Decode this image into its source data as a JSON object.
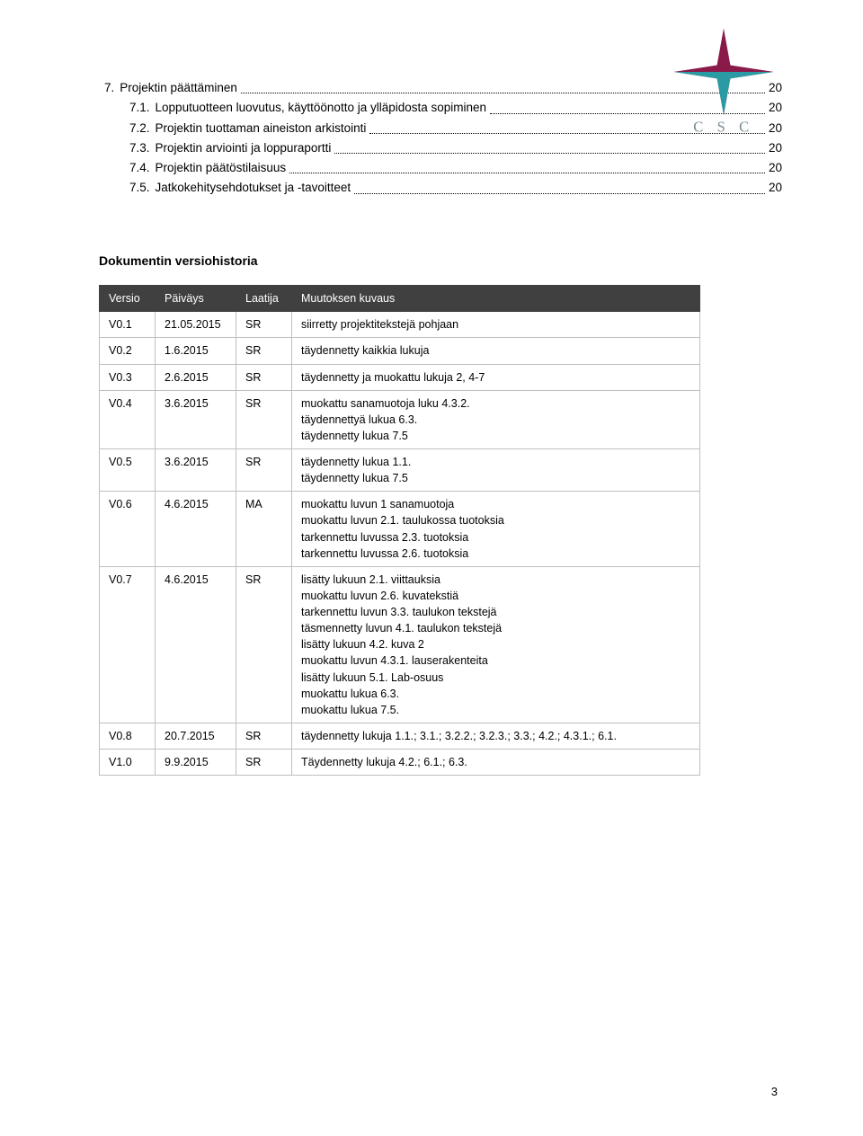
{
  "logo": {
    "text": "C S C",
    "text_color": "#7a8e95",
    "star_color_dark": "#8a1a4a",
    "star_color_teal": "#2a9ba3"
  },
  "toc": [
    {
      "level": 0,
      "num": "7.",
      "title": "Projektin päättäminen",
      "page": "20"
    },
    {
      "level": 1,
      "num": "7.1.",
      "title": "Lopputuotteen luovutus, käyttöönotto ja ylläpidosta sopiminen",
      "page": "20"
    },
    {
      "level": 1,
      "num": "7.2.",
      "title": "Projektin tuottaman aineiston arkistointi",
      "page": "20"
    },
    {
      "level": 1,
      "num": "7.3.",
      "title": "Projektin arviointi ja loppuraportti",
      "page": "20"
    },
    {
      "level": 1,
      "num": "7.4.",
      "title": "Projektin päätöstilaisuus",
      "page": "20"
    },
    {
      "level": 1,
      "num": "7.5.",
      "title": "Jatkokehitysehdotukset ja -tavoitteet",
      "page": "20"
    }
  ],
  "section_heading": "Dokumentin versiohistoria",
  "table": {
    "headers": [
      "Versio",
      "Päiväys",
      "Laatija",
      "Muutoksen kuvaus"
    ],
    "rows": [
      {
        "c": [
          "V0.1",
          "21.05.2015",
          "SR",
          "siirretty projektitekstejä pohjaan"
        ]
      },
      {
        "c": [
          "V0.2",
          "1.6.2015",
          "SR",
          "täydennetty kaikkia lukuja"
        ]
      },
      {
        "c": [
          "V0.3",
          "2.6.2015",
          "SR",
          "täydennetty ja muokattu lukuja 2, 4-7"
        ]
      },
      {
        "c": [
          "V0.4",
          "3.6.2015",
          "SR",
          "muokattu sanamuotoja luku 4.3.2.\ntäydennettyä lukua 6.3.\ntäydennetty lukua 7.5"
        ]
      },
      {
        "c": [
          "V0.5",
          "3.6.2015",
          "SR",
          "täydennetty lukua 1.1.\ntäydennetty lukua 7.5"
        ]
      },
      {
        "c": [
          "V0.6",
          "4.6.2015",
          "MA",
          "muokattu luvun 1 sanamuotoja\nmuokattu luvun 2.1. taulukossa tuotoksia\ntarkennettu luvussa 2.3. tuotoksia\ntarkennettu luvussa 2.6. tuotoksia"
        ]
      },
      {
        "c": [
          "V0.7",
          "4.6.2015",
          "SR",
          "lisätty lukuun 2.1. viittauksia\nmuokattu luvun 2.6. kuvatekstiä\ntarkennettu luvun 3.3. taulukon tekstejä\ntäsmennetty luvun 4.1. taulukon tekstejä\nlisätty lukuun 4.2. kuva 2\nmuokattu luvun 4.3.1. lauserakenteita\nlisätty lukuun 5.1. Lab-osuus\nmuokattu lukua 6.3.\nmuokattu lukua 7.5."
        ]
      },
      {
        "c": [
          "V0.8",
          "20.7.2015",
          "SR",
          "täydennetty lukuja 1.1.; 3.1.; 3.2.2.; 3.2.3.; 3.3.; 4.2.; 4.3.1.; 6.1."
        ]
      },
      {
        "c": [
          "V1.0",
          "9.9.2015",
          "SR",
          "Täydennetty lukuja 4.2.; 6.1.; 6.3."
        ]
      }
    ],
    "col_widths": [
      "62px",
      "90px",
      "62px",
      "auto"
    ],
    "header_bg": "#404040",
    "header_fg": "#ffffff",
    "border_color": "#bfbfbf"
  },
  "page_number": "3"
}
